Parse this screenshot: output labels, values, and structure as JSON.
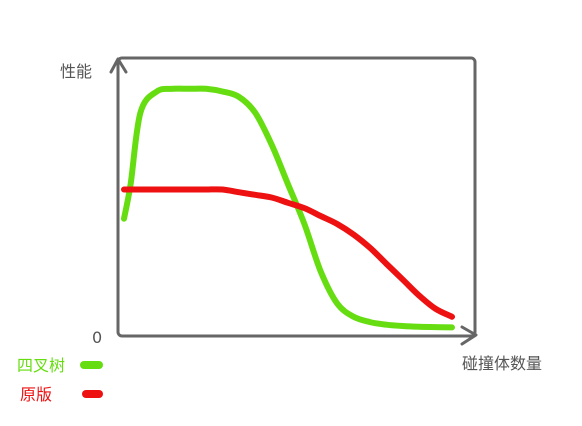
{
  "chart_data": {
    "type": "line",
    "ylabel": "性能",
    "xlabel": "碰撞体数量",
    "origin_label": "0",
    "x": [
      0,
      2,
      5,
      10,
      15,
      20,
      25,
      30,
      35,
      40,
      45,
      50,
      55,
      60,
      65,
      70,
      75,
      80,
      85,
      90,
      95,
      100
    ],
    "series": [
      {
        "name": "四叉树",
        "color": "#66dd11",
        "values": [
          42,
          55,
          82,
          90,
          91,
          91,
          91,
          90,
          88,
          82,
          70,
          55,
          40,
          22,
          10,
          5,
          3,
          2,
          1.5,
          1.2,
          1.1,
          1
        ]
      },
      {
        "name": "原版",
        "color": "#ee1111",
        "values": [
          53,
          53,
          53,
          53,
          53,
          53,
          53,
          53,
          52,
          51,
          50,
          48,
          46,
          43,
          40,
          36,
          31,
          25,
          19,
          13,
          8,
          5
        ]
      }
    ],
    "legend_position": "bottom-left",
    "grid": false,
    "xlim": [
      0,
      100
    ],
    "ylim": [
      0,
      100
    ]
  }
}
